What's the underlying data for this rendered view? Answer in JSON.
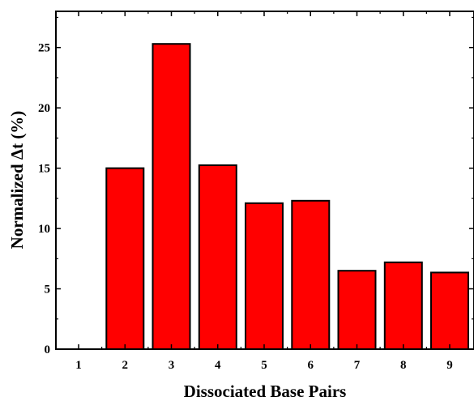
{
  "chart_data": {
    "type": "bar",
    "categories": [
      "1",
      "2",
      "3",
      "4",
      "5",
      "6",
      "7",
      "8",
      "9"
    ],
    "values": [
      0,
      15.0,
      25.3,
      15.25,
      12.1,
      12.3,
      6.5,
      7.2,
      6.35
    ],
    "xlabel": "Dissociated Base Pairs",
    "ylabel": "Normalized Δt (%)",
    "ylim": [
      0,
      28
    ],
    "yticks": [
      "0",
      "5",
      "10",
      "15",
      "20",
      "25"
    ],
    "bar_color": "#ff0000",
    "bar_edge_color": "#000000",
    "grid": false,
    "legend": false
  }
}
